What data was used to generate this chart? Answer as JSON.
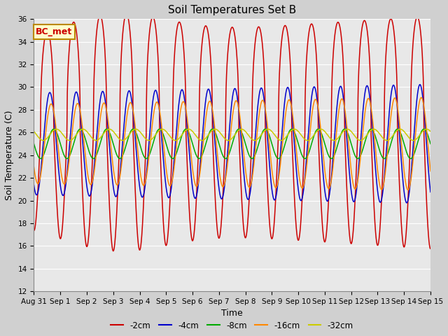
{
  "title": "Soil Temperatures Set B",
  "xlabel": "Time",
  "ylabel": "Soil Temperature (C)",
  "ylim": [
    12,
    36
  ],
  "xlim_days": [
    0,
    15
  ],
  "xtick_labels": [
    "Aug 31",
    "Sep 1",
    "Sep 2",
    "Sep 3",
    "Sep 4",
    "Sep 5",
    "Sep 6",
    "Sep 7",
    "Sep 8",
    "Sep 9",
    "Sep 10",
    "Sep 11",
    "Sep 12",
    "Sep 13",
    "Sep 14",
    "Sep 15"
  ],
  "legend_label": "BC_met",
  "legend_box_facecolor": "#ffffcc",
  "legend_box_edgecolor": "#bb8800",
  "legend_text_color": "#cc0000",
  "background_color": "#e8e8e8",
  "fig_background_color": "#d0d0d0",
  "grid_color": "#ffffff",
  "title_fontsize": 11,
  "axis_label_fontsize": 9,
  "tick_fontsize": 7.5,
  "legend_fontsize": 8.5,
  "series_colors": [
    "#cc0000",
    "#0000cc",
    "#00aa00",
    "#ff8800",
    "#cccc00"
  ],
  "series_labels": [
    "-2cm",
    "-4cm",
    "-8cm",
    "-16cm",
    "-32cm"
  ]
}
